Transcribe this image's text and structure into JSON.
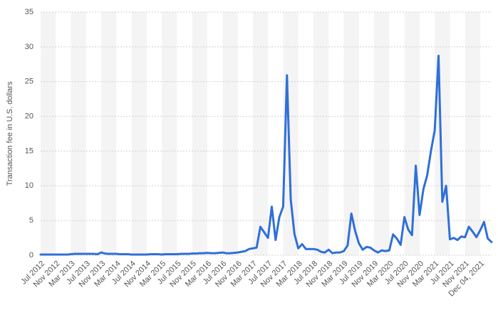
{
  "chart_data": {
    "type": "line",
    "y_label": "Transaction fee in U.S. dollars",
    "categories": [
      "Jul 2012",
      null,
      null,
      null,
      "Nov 2012",
      null,
      null,
      null,
      "Mar 2013",
      null,
      null,
      null,
      "Jul 2013",
      null,
      null,
      null,
      "Nov 2013",
      null,
      null,
      null,
      "Mar 2014",
      null,
      null,
      null,
      "Jul 2014",
      null,
      null,
      null,
      "Nov 2014",
      null,
      null,
      null,
      "Mar 2015",
      null,
      null,
      null,
      "Jul 2015",
      null,
      null,
      null,
      "Nov 2015",
      null,
      null,
      null,
      "Mar 2016",
      null,
      null,
      null,
      "Jul 2016",
      null,
      null,
      null,
      "Nov 2016",
      null,
      null,
      null,
      "Mar 2017",
      null,
      null,
      null,
      "Jul 2017",
      null,
      null,
      null,
      "Nov 2017",
      null,
      null,
      null,
      "Mar 2018",
      null,
      null,
      null,
      "Jul 2018",
      null,
      null,
      null,
      "Nov 2018",
      null,
      null,
      null,
      "Mar 2019",
      null,
      null,
      null,
      "Jul 2019",
      null,
      null,
      null,
      "Nov 2019",
      null,
      null,
      null,
      "Mar 2020",
      null,
      null,
      null,
      "Jul 2020",
      null,
      null,
      null,
      "Nov 2020",
      null,
      null,
      null,
      "Mar 2021",
      null,
      null,
      null,
      "Jul 2021",
      null,
      null,
      null,
      "Nov 2021",
      null,
      null,
      null,
      "Dec 04, 2021",
      null,
      null,
      null
    ],
    "values": [
      0.1,
      0.1,
      0.1,
      0.1,
      0.1,
      0.1,
      0.1,
      0.1,
      0.15,
      0.2,
      0.2,
      0.2,
      0.2,
      0.2,
      0.2,
      0.15,
      0.4,
      0.25,
      0.2,
      0.2,
      0.2,
      0.15,
      0.15,
      0.15,
      0.1,
      0.1,
      0.1,
      0.1,
      0.1,
      0.15,
      0.15,
      0.15,
      0.1,
      0.15,
      0.15,
      0.15,
      0.15,
      0.2,
      0.2,
      0.2,
      0.25,
      0.25,
      0.3,
      0.3,
      0.35,
      0.3,
      0.3,
      0.35,
      0.4,
      0.3,
      0.3,
      0.35,
      0.4,
      0.5,
      0.6,
      0.9,
      1.0,
      1.1,
      4.1,
      3.3,
      2.5,
      7.0,
      2.2,
      5.5,
      7.0,
      25.9,
      8.0,
      3.0,
      1.0,
      1.6,
      0.9,
      0.9,
      0.9,
      0.8,
      0.5,
      0.4,
      0.8,
      0.3,
      0.4,
      0.4,
      0.6,
      1.4,
      6.0,
      3.5,
      1.7,
      0.8,
      1.2,
      1.1,
      0.7,
      0.4,
      0.7,
      0.6,
      0.7,
      3.0,
      2.4,
      1.5,
      5.5,
      3.7,
      2.9,
      12.9,
      5.8,
      9.5,
      11.5,
      15.0,
      18.0,
      28.7,
      7.7,
      10.0,
      2.3,
      2.5,
      2.2,
      2.7,
      2.6,
      4.1,
      3.4,
      2.6,
      3.6,
      4.8,
      2.4,
      1.9
    ],
    "color": "#2f6fd8",
    "ylim": [
      0,
      35
    ],
    "yticks": [
      0,
      5,
      10,
      15,
      20,
      25,
      30,
      35
    ],
    "grid": true
  }
}
